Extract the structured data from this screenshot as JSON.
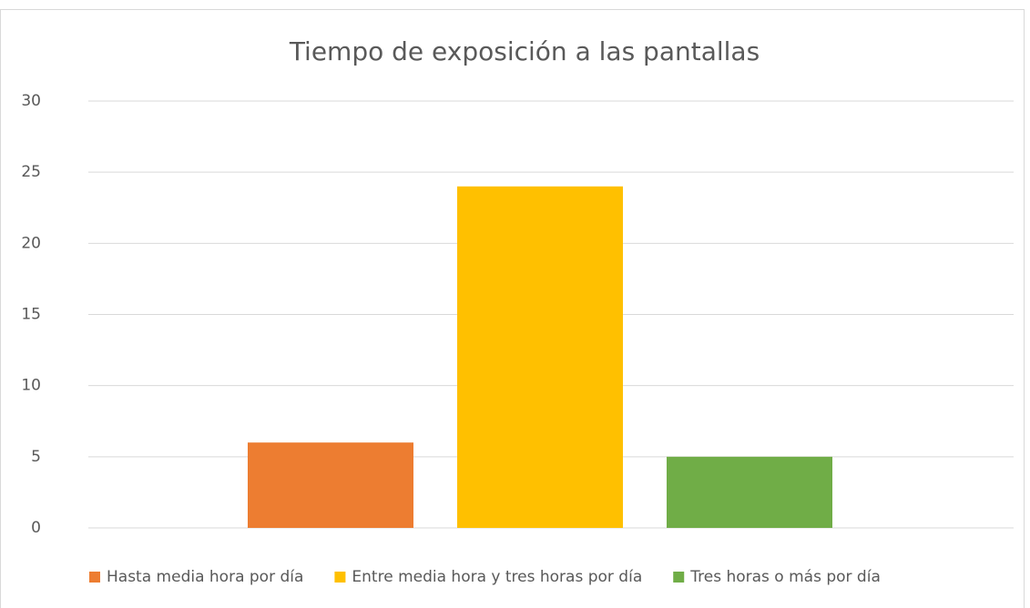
{
  "chart_data": {
    "type": "bar",
    "title": "Tiempo de exposición a las pantallas",
    "categories": [
      null
    ],
    "series": [
      {
        "name": "Hasta media hora por día",
        "color": "#ed7d31",
        "values": [
          6
        ]
      },
      {
        "name": "Entre media hora y tres horas por día",
        "color": "#ffc000",
        "values": [
          24
        ]
      },
      {
        "name": "Tres horas o más por día",
        "color": "#70ad47",
        "values": [
          5
        ]
      }
    ],
    "ylim": [
      0,
      30
    ],
    "yticks": [
      0,
      5,
      10,
      15,
      20,
      25,
      30
    ],
    "grid": true,
    "legend": "bottom"
  }
}
